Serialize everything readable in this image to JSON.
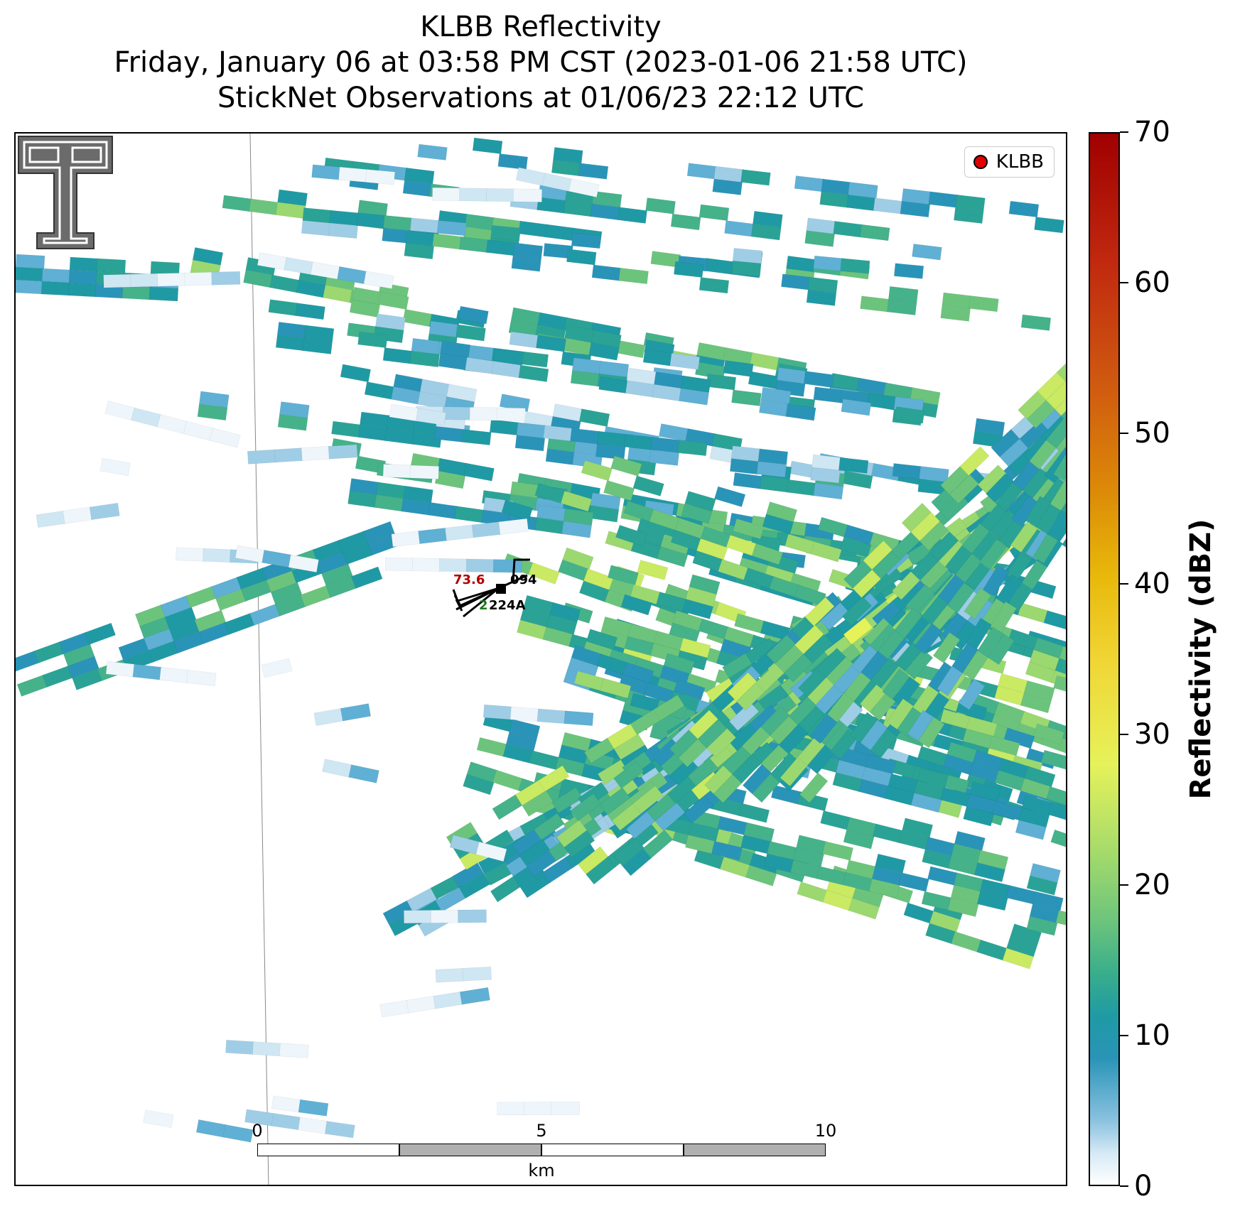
{
  "title_lines": [
    "KLBB Reflectivity",
    "Friday, January 06 at 03:58 PM CST (2023-01-06 21:58 UTC)",
    "StickNet Observations at 01/06/23 22:12 UTC"
  ],
  "legend": {
    "label": "KLBB",
    "marker_color": "#e00000"
  },
  "station": {
    "id": "224A",
    "temperature": "73.6",
    "pressure": "094",
    "dewpoint": "2"
  },
  "scale_bar": {
    "ticks": [
      "0",
      "5",
      "10"
    ],
    "unit": "km"
  },
  "colorbar": {
    "label": "Reflectivity (dBZ)",
    "ticks": [
      "0",
      "10",
      "20",
      "30",
      "40",
      "50",
      "60",
      "70"
    ],
    "min": 0,
    "max": 70
  },
  "logo": {
    "name": "texas-tech-double-t-logo"
  }
}
